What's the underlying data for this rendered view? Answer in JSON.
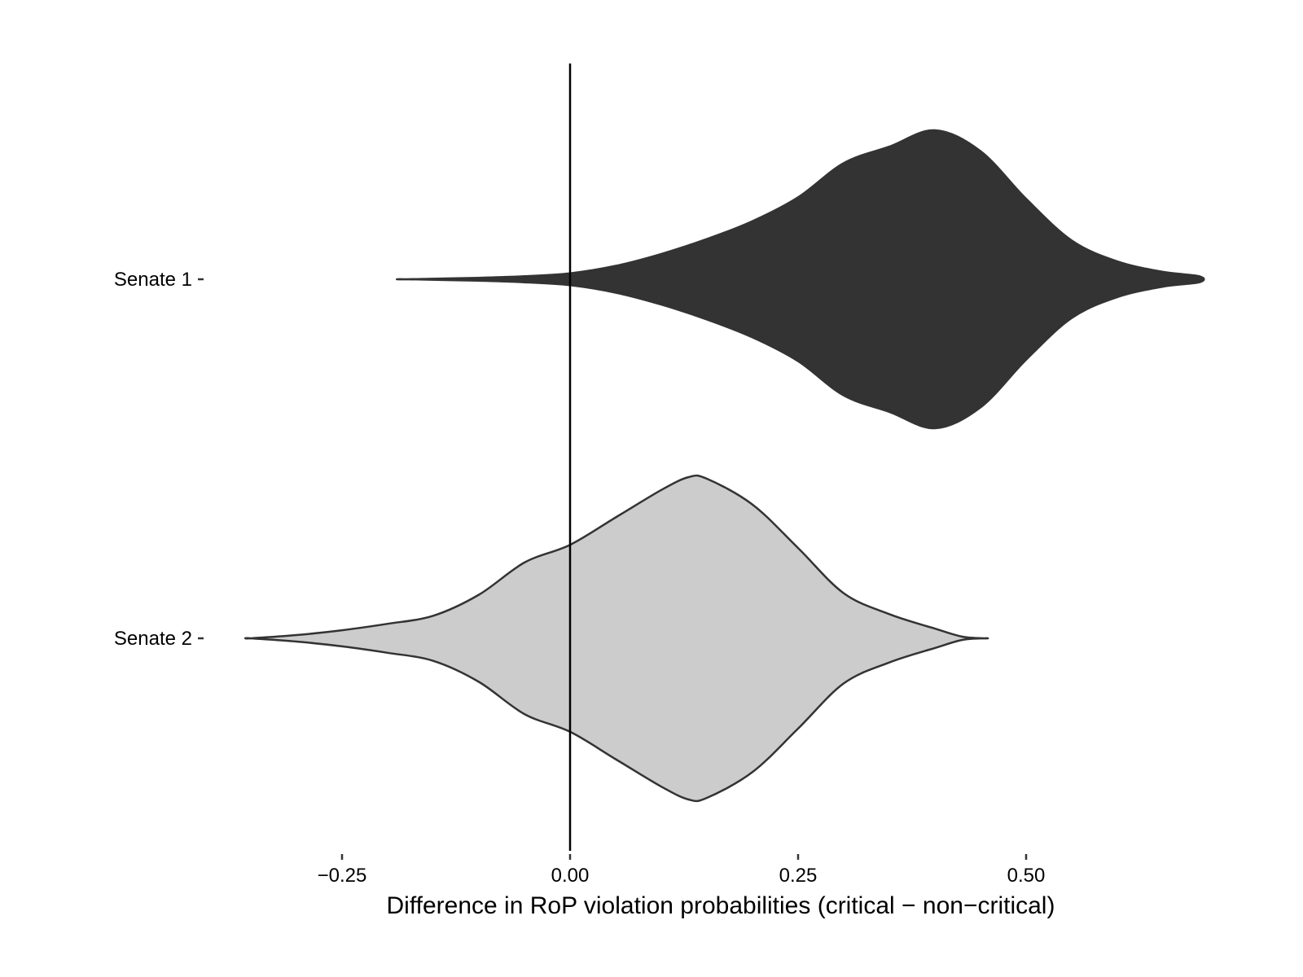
{
  "chart_data": {
    "type": "violin",
    "orientation": "horizontal",
    "title": "",
    "xlabel": "Difference in RoP violation probabilities (critical − non−critical)",
    "ylabel": "",
    "xlim": [
      -0.365,
      0.725
    ],
    "x_ticks": [
      -0.25,
      0.0,
      0.25,
      0.5
    ],
    "x_tick_labels": [
      "−0.25",
      "0.00",
      "0.25",
      "0.50"
    ],
    "reference_line_x": 0.0,
    "grid": false,
    "legend": "none",
    "categories": [
      "Senate 1",
      "Senate 2"
    ],
    "series": [
      {
        "category": "Senate 1",
        "fill": "#333333",
        "outline": "#333333",
        "density_profile": [
          [
            -0.18,
            0.0
          ],
          [
            -0.1,
            0.01
          ],
          [
            -0.05,
            0.02
          ],
          [
            0.0,
            0.04
          ],
          [
            0.05,
            0.09
          ],
          [
            0.1,
            0.17
          ],
          [
            0.15,
            0.27
          ],
          [
            0.2,
            0.39
          ],
          [
            0.25,
            0.55
          ],
          [
            0.3,
            0.78
          ],
          [
            0.35,
            0.89
          ],
          [
            0.4,
            1.0
          ],
          [
            0.45,
            0.86
          ],
          [
            0.5,
            0.54
          ],
          [
            0.55,
            0.26
          ],
          [
            0.6,
            0.12
          ],
          [
            0.65,
            0.05
          ],
          [
            0.69,
            0.02
          ]
        ]
      },
      {
        "category": "Senate 2",
        "fill": "#cccccc",
        "outline": "#333333",
        "density_profile": [
          [
            -0.35,
            0.0
          ],
          [
            -0.3,
            0.02
          ],
          [
            -0.25,
            0.05
          ],
          [
            -0.2,
            0.09
          ],
          [
            -0.15,
            0.14
          ],
          [
            -0.1,
            0.27
          ],
          [
            -0.05,
            0.47
          ],
          [
            0.0,
            0.58
          ],
          [
            0.05,
            0.75
          ],
          [
            0.1,
            0.92
          ],
          [
            0.13,
            1.0
          ],
          [
            0.15,
            0.99
          ],
          [
            0.2,
            0.83
          ],
          [
            0.25,
            0.56
          ],
          [
            0.3,
            0.28
          ],
          [
            0.35,
            0.15
          ],
          [
            0.4,
            0.06
          ],
          [
            0.43,
            0.01
          ],
          [
            0.455,
            0.0
          ]
        ]
      }
    ]
  }
}
